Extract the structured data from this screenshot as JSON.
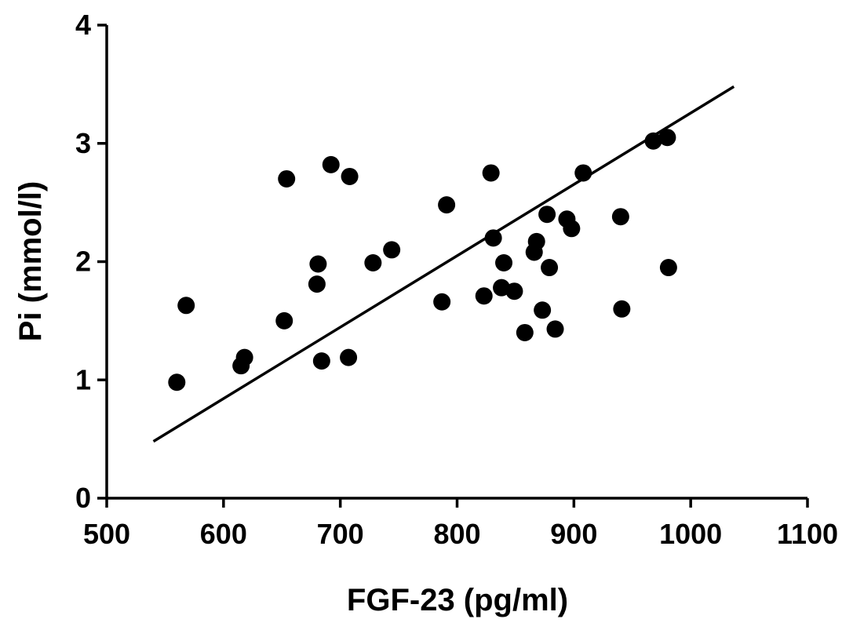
{
  "chart_data": {
    "type": "scatter",
    "title": "",
    "xlabel": "FGF-23 (pg/ml)",
    "ylabel": "Pi (mmol/l)",
    "xlim": [
      500,
      1100
    ],
    "ylim": [
      0,
      4
    ],
    "xticks": [
      500,
      600,
      700,
      800,
      900,
      1000,
      1100
    ],
    "yticks": [
      0,
      1,
      2,
      3,
      4
    ],
    "grid": false,
    "legend": "none",
    "colors": {
      "points": "#000000",
      "line": "#000000",
      "axes": "#000000"
    },
    "series": [
      {
        "points": [
          [
            560,
            0.98
          ],
          [
            568,
            1.63
          ],
          [
            615,
            1.12
          ],
          [
            618,
            1.19
          ],
          [
            652,
            1.5
          ],
          [
            654,
            2.7
          ],
          [
            680,
            1.81
          ],
          [
            681,
            1.98
          ],
          [
            684,
            1.16
          ],
          [
            692,
            2.82
          ],
          [
            707,
            1.19
          ],
          [
            708,
            2.72
          ],
          [
            728,
            1.99
          ],
          [
            744,
            2.1
          ],
          [
            787,
            1.66
          ],
          [
            791,
            2.48
          ],
          [
            823,
            1.71
          ],
          [
            829,
            2.75
          ],
          [
            831,
            2.2
          ],
          [
            838,
            1.78
          ],
          [
            840,
            1.99
          ],
          [
            849,
            1.75
          ],
          [
            858,
            1.4
          ],
          [
            866,
            2.08
          ],
          [
            868,
            2.17
          ],
          [
            873,
            1.59
          ],
          [
            877,
            2.4
          ],
          [
            879,
            1.95
          ],
          [
            884,
            1.43
          ],
          [
            894,
            2.36
          ],
          [
            898,
            2.28
          ],
          [
            908,
            2.75
          ],
          [
            940,
            2.38
          ],
          [
            941,
            1.6
          ],
          [
            968,
            3.02
          ],
          [
            980,
            3.05
          ],
          [
            981,
            1.95
          ]
        ]
      }
    ],
    "fit_line": {
      "x": [
        540,
        1037
      ],
      "y": [
        0.48,
        3.48
      ]
    }
  }
}
